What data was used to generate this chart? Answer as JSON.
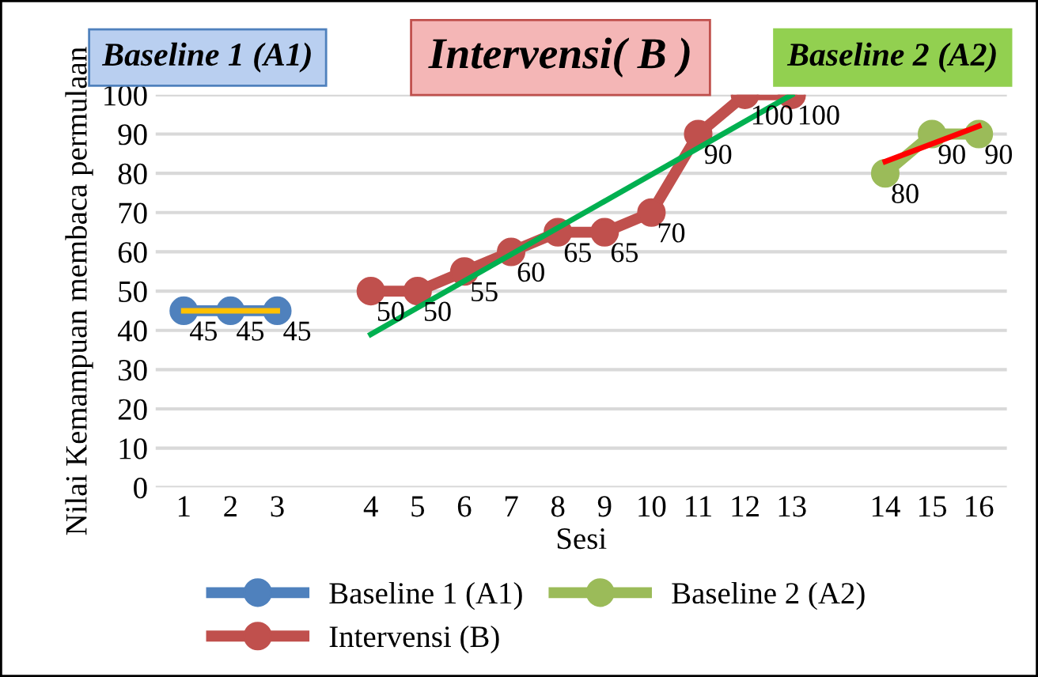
{
  "chart_data": {
    "type": "line",
    "xlabel": "Sesi",
    "ylabel": "Nilai Kemampuan membaca permulaan",
    "categories": [
      "1",
      "2",
      "3",
      null,
      "4",
      "5",
      "6",
      "7",
      "8",
      "9",
      "10",
      "11",
      "12",
      "13",
      null,
      "14",
      "15",
      "16"
    ],
    "ylim": [
      0,
      100
    ],
    "yticks": [
      0,
      10,
      20,
      30,
      40,
      50,
      60,
      70,
      80,
      90,
      100
    ],
    "grid": "y",
    "legend": "bottom",
    "marker": "circle",
    "data_labels": true,
    "series": [
      {
        "name": "Baseline 1 (A1)",
        "color": "#4f81bd",
        "values": [
          45,
          45,
          45,
          null,
          null,
          null,
          null,
          null,
          null,
          null,
          null,
          null,
          null,
          null,
          null,
          null,
          null,
          null
        ]
      },
      {
        "name": "Intervensi (B)",
        "color": "#c0504d",
        "values": [
          null,
          null,
          null,
          null,
          50,
          50,
          55,
          60,
          65,
          65,
          70,
          90,
          100,
          100,
          null,
          null,
          null,
          null
        ]
      },
      {
        "name": "Baseline 2 (A2)",
        "color": "#9bbb59",
        "values": [
          null,
          null,
          null,
          null,
          null,
          null,
          null,
          null,
          null,
          null,
          null,
          null,
          null,
          null,
          null,
          80,
          90,
          90
        ]
      },
      {
        "type": "line",
        "marker": "none",
        "color": "#ffc000",
        "x": [
          "1",
          "3"
        ],
        "values": [
          45,
          45
        ],
        "value_labels": [
          null,
          null
        ]
      },
      {
        "type": "line",
        "marker": "none",
        "color": "#00b050",
        "x": [
          "4",
          "13"
        ],
        "values": [
          39,
          100
        ],
        "value_labels": [
          null,
          null
        ]
      },
      {
        "type": "line",
        "marker": "none",
        "color": "#ff0000",
        "x": [
          "14",
          "16"
        ],
        "values": [
          83,
          92
        ],
        "value_labels": [
          null,
          null
        ]
      }
    ],
    "annotations": [
      "Baseline 1 (A1)",
      "Intervensi( B )",
      "Baseline 2 (A2)"
    ]
  }
}
